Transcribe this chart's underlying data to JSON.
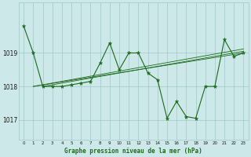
{
  "hours": [
    0,
    1,
    2,
    3,
    4,
    5,
    6,
    7,
    8,
    9,
    10,
    11,
    12,
    13,
    14,
    15,
    16,
    17,
    18,
    19,
    20,
    21,
    22,
    23
  ],
  "pressure": [
    1019.8,
    1019.0,
    1018.0,
    1018.0,
    1018.0,
    1018.05,
    1018.1,
    1018.15,
    1018.7,
    1019.3,
    1018.5,
    1019.0,
    1019.0,
    1018.4,
    1018.2,
    1017.05,
    1017.55,
    1017.1,
    1017.05,
    1018.0,
    1018.0,
    1019.4,
    1018.9,
    1019.0
  ],
  "trend_lines": [
    {
      "x": [
        1,
        23
      ],
      "y": [
        1018.0,
        1019.0
      ]
    },
    {
      "x": [
        2,
        23
      ],
      "y": [
        1018.0,
        1019.05
      ]
    },
    {
      "x": [
        1,
        23
      ],
      "y": [
        1018.0,
        1019.12
      ]
    }
  ],
  "line_color": "#1a6b1a",
  "bg_color": "#cde8e8",
  "grid_color": "#a0c8c8",
  "title": "Graphe pression niveau de la mer (hPa)",
  "yticks": [
    1017,
    1018,
    1019
  ],
  "ylim": [
    1016.4,
    1020.5
  ],
  "xlim": [
    -0.5,
    23.5
  ],
  "figsize": [
    3.2,
    2.0
  ],
  "dpi": 100
}
